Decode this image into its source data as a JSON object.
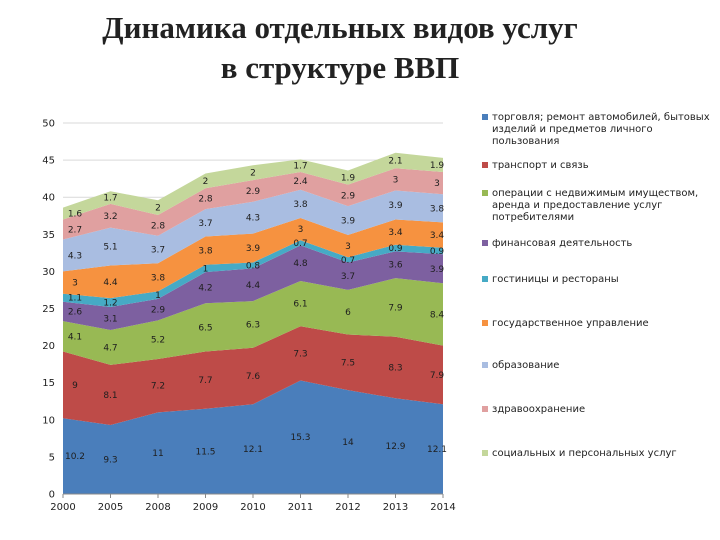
{
  "page": {
    "title_line1": "Динамика отдельных видов услуг",
    "title_line2": "в структуре ВВП"
  },
  "chart_data": {
    "type": "area",
    "stacked": true,
    "x": [
      "2000",
      "2005",
      "2008",
      "2009",
      "2010",
      "2011",
      "2012",
      "2013",
      "2014"
    ],
    "ylim": [
      0,
      50
    ],
    "yticks": [
      0,
      5,
      10,
      15,
      20,
      25,
      30,
      35,
      40,
      45,
      50
    ],
    "grid": true,
    "legend": "right",
    "series": [
      {
        "name": "торговля; ремонт автомобилей, бытовых изделий и предметов личного пользования",
        "color": "#4a7ebb",
        "values": [
          10.2,
          9.3,
          11,
          11.5,
          12.1,
          15.3,
          14,
          12.9,
          12.1
        ]
      },
      {
        "name": "транспорт и связь",
        "color": "#be4b48",
        "values": [
          9,
          8.1,
          7.2,
          7.7,
          7.6,
          7.3,
          7.5,
          8.3,
          7.9
        ]
      },
      {
        "name": "операции с недвижимым имуществом, аренда и предоставление услуг потребителями",
        "color": "#98b954",
        "values": [
          4.1,
          4.7,
          5.2,
          6.5,
          6.3,
          6.1,
          6,
          7.9,
          8.4
        ]
      },
      {
        "name": "финансовая деятельность",
        "color": "#7d60a0",
        "values": [
          2.6,
          3.1,
          2.9,
          4.2,
          4.4,
          4.8,
          3.7,
          3.6,
          3.9
        ]
      },
      {
        "name": "гостиницы и рестораны",
        "color": "#46aac5",
        "values": [
          1.1,
          1.2,
          1,
          1,
          0.8,
          0.7,
          0.7,
          0.9,
          0.9
        ]
      },
      {
        "name": "государственное управление",
        "color": "#f69240",
        "values": [
          3,
          4.4,
          3.8,
          3.8,
          3.9,
          3,
          3,
          3.4,
          3.4
        ]
      },
      {
        "name": "образование",
        "color": "#a9bde1",
        "values": [
          4.3,
          5.1,
          3.7,
          3.7,
          4.3,
          3.8,
          3.9,
          3.9,
          3.8
        ]
      },
      {
        "name": "здравоохранение",
        "color": "#e0a0a0",
        "values": [
          2.7,
          3.2,
          2.8,
          2.8,
          2.9,
          2.4,
          2.9,
          3,
          3
        ]
      },
      {
        "name": "социальных и персональных услуг",
        "color": "#c4d79b",
        "values": [
          1.6,
          1.7,
          2,
          2,
          2,
          1.7,
          1.9,
          2.1,
          1.9
        ]
      }
    ]
  }
}
